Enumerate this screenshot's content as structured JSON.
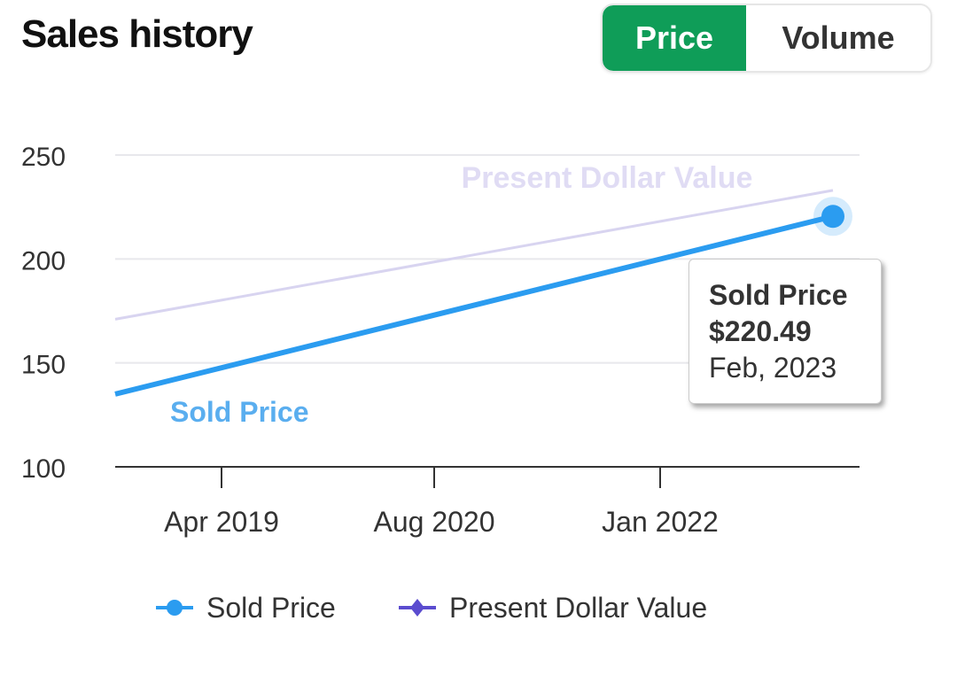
{
  "header": {
    "title": "Sales history"
  },
  "toggle": {
    "options": [
      "Price",
      "Volume"
    ],
    "selected": "Price"
  },
  "colors": {
    "sold_price": "#2b9cf0",
    "present_dollar_value": "#d8d4f0",
    "legend_present": "#5b4ccf",
    "toggle_active": "#0f9d58"
  },
  "tooltip": {
    "series": "Sold Price",
    "value": "$220.49",
    "date": "Feb, 2023"
  },
  "chart_data": {
    "type": "line",
    "ylim": [
      100,
      250
    ],
    "yticks": [
      "100",
      "150",
      "200",
      "250"
    ],
    "xticks": [
      {
        "label": "Apr 2019",
        "date": "2019-04"
      },
      {
        "label": "Aug 2020",
        "date": "2020-08"
      },
      {
        "label": "Jan 2022",
        "date": "2022-01"
      }
    ],
    "xlim": [
      "2018-08",
      "2023-04"
    ],
    "grid": true,
    "legend_placement": "bottom",
    "series": [
      {
        "name": "Sold Price",
        "points": [
          {
            "x": "2018-08",
            "y": 135
          },
          {
            "x": "2023-02",
            "y": 220.49
          }
        ]
      },
      {
        "name": "Present Dollar Value",
        "points": [
          {
            "x": "2018-08",
            "y": 171
          },
          {
            "x": "2023-02",
            "y": 233
          }
        ]
      }
    ],
    "annotations": [
      "Present Dollar Value",
      "Sold Price"
    ]
  }
}
